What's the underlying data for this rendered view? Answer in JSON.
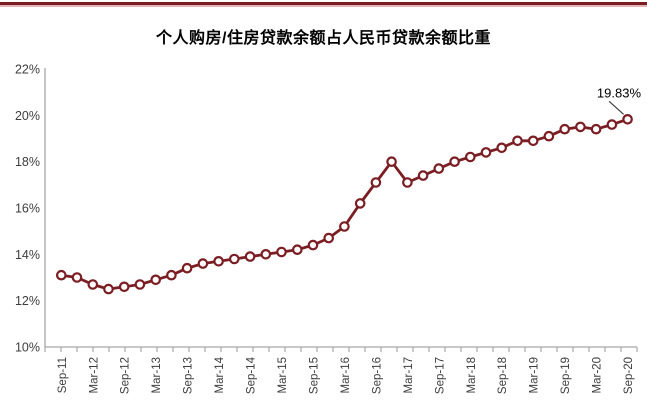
{
  "page": {
    "top_border_dark_color": "#7b1e23",
    "top_border_light_color": "#e2b3b5"
  },
  "chart_data": {
    "type": "line",
    "title": "个人购房/住房贷款余额占人民币贷款余额比重",
    "categories": [
      "Sep-11",
      "Dec-11",
      "Mar-12",
      "Jun-12",
      "Sep-12",
      "Dec-12",
      "Mar-13",
      "Jun-13",
      "Sep-13",
      "Dec-13",
      "Mar-14",
      "Jun-14",
      "Sep-14",
      "Dec-14",
      "Mar-15",
      "Jun-15",
      "Sep-15",
      "Dec-15",
      "Mar-16",
      "Jun-16",
      "Sep-16",
      "Dec-16",
      "Mar-17",
      "Jun-17",
      "Sep-17",
      "Dec-17",
      "Mar-18",
      "Jun-18",
      "Sep-18",
      "Dec-18",
      "Mar-19",
      "Jun-19",
      "Sep-19",
      "Dec-19",
      "Mar-20",
      "Jun-20",
      "Sep-20"
    ],
    "series": [
      {
        "name": "个人购房/住房贷款余额占人民币贷款余额比重",
        "values": [
          13.1,
          13.0,
          12.7,
          12.5,
          12.6,
          12.7,
          12.9,
          13.1,
          13.4,
          13.6,
          13.7,
          13.8,
          13.9,
          14.0,
          14.1,
          14.2,
          14.4,
          14.7,
          15.2,
          16.2,
          17.1,
          18.0,
          17.1,
          17.4,
          17.7,
          18.0,
          18.2,
          18.4,
          18.6,
          18.9,
          18.9,
          19.1,
          19.4,
          19.5,
          19.4,
          19.6,
          19.83
        ]
      }
    ],
    "ylim": [
      10,
      22
    ],
    "ytick_labels": [
      "10%",
      "12%",
      "14%",
      "16%",
      "18%",
      "20%",
      "22%"
    ],
    "xtick_labels_shown": [
      "Sep-11",
      "Mar-12",
      "Sep-12",
      "Mar-13",
      "Sep-13",
      "Mar-14",
      "Sep-14",
      "Mar-15",
      "Sep-15",
      "Mar-16",
      "Sep-16",
      "Mar-17",
      "Sep-17",
      "Mar-18",
      "Sep-18",
      "Mar-19",
      "Sep-19",
      "Mar-20",
      "Sep-20"
    ],
    "xlabel": "",
    "ylabel": "",
    "grid": false,
    "legend": "none",
    "annotation": {
      "text": "19.83%",
      "point_index": 36
    },
    "colors": {
      "line": "#7b1e23",
      "marker_fill": "#ffffff",
      "marker_stroke": "#7b1e23",
      "axis": "#a8a8a8",
      "tick": "#a8a8a8",
      "label_text": "#3d3d3d",
      "annotation_text": "#000000",
      "annotation_leader": "#404040"
    }
  }
}
